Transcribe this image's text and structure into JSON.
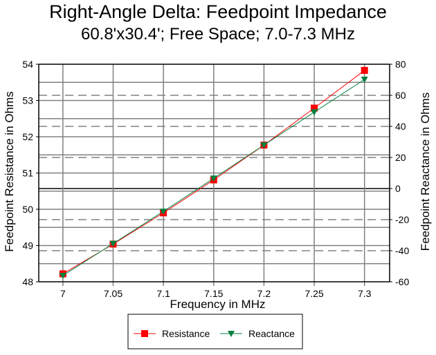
{
  "chart_data": {
    "type": "line",
    "title": "Right-Angle Delta: Feedpoint Impedance",
    "subtitle": "60.8'x30.4'; Free Space; 7.0-7.3 MHz",
    "xlabel": "Frequency in MHz",
    "ylabel": "Feedpoint Resistance in Ohms",
    "y2label": "Feedpoint Reactance in Ohms",
    "x": [
      7.0,
      7.05,
      7.1,
      7.15,
      7.2,
      7.25,
      7.3
    ],
    "x_tick_labels": [
      "7",
      "7.05",
      "7.1",
      "7.15",
      "7.2",
      "7.25",
      "7.3"
    ],
    "y_tick_labels": [
      "48",
      "49",
      "50",
      "51",
      "52",
      "53",
      "54"
    ],
    "y2_tick_labels": [
      "-60",
      "-40",
      "-20",
      "0",
      "20",
      "40",
      "60",
      "80"
    ],
    "xlim": [
      6.976,
      7.325
    ],
    "ylim": [
      48,
      54
    ],
    "y2lim": [
      -60,
      80
    ],
    "grid": true,
    "legend": "bottom-center",
    "series": [
      {
        "name": "Resistance",
        "axis": "left",
        "color": "#ff0000",
        "marker": "square",
        "values": [
          48.22,
          49.04,
          49.9,
          50.81,
          51.77,
          52.79,
          53.83
        ]
      },
      {
        "name": "Reactance",
        "axis": "right",
        "color": "#008040",
        "marker": "triangle-down",
        "values": [
          -56.0,
          -35.4,
          -14.7,
          6.6,
          28.0,
          49.2,
          70.2
        ]
      }
    ]
  }
}
